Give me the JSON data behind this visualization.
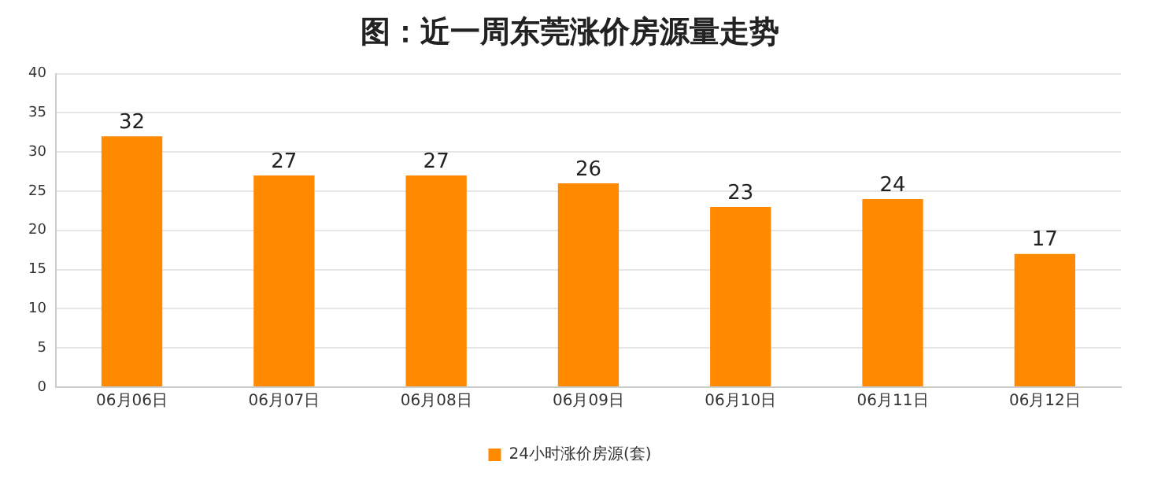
{
  "chart_data": {
    "type": "bar",
    "title": "图：近一周东莞涨价房源量走势",
    "categories": [
      "06月06日",
      "06月07日",
      "06月08日",
      "06月09日",
      "06月10日",
      "06月11日",
      "06月12日"
    ],
    "series": [
      {
        "name": "24小时涨价房源(套)",
        "color": "#ff8a00",
        "values": [
          32,
          27,
          27,
          26,
          23,
          24,
          17
        ]
      }
    ],
    "ylim": [
      0,
      40
    ],
    "yticks": [
      0,
      5,
      10,
      15,
      20,
      25,
      30,
      35,
      40
    ],
    "grid": "y",
    "legend": "bottom",
    "data_labels": true
  }
}
